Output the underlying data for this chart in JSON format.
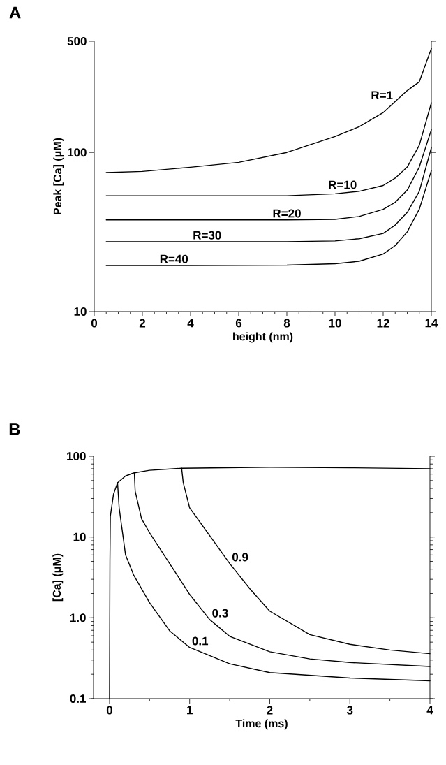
{
  "chart_data": [
    {
      "type": "line",
      "title": "A",
      "xlabel": "height (nm)",
      "ylabel": "Peak [Ca] (μM)",
      "log": "y",
      "marker": "none",
      "line_style": "solid",
      "xlim": [
        0,
        14
      ],
      "ylim": [
        10,
        500
      ],
      "xticks": [
        0,
        2,
        4,
        6,
        8,
        10,
        12,
        14
      ],
      "yticks": [
        10,
        100,
        500
      ],
      "series": [
        {
          "name": "R=1",
          "color": "#000000",
          "x": [
            0.5,
            2,
            4,
            6,
            8,
            10,
            11,
            12,
            12.5,
            13,
            13.5,
            14
          ],
          "values": [
            74.7,
            76,
            80.7,
            86.7,
            100,
            126,
            145,
            178,
            209,
            245,
            278,
            450
          ]
        },
        {
          "name": "R=10",
          "color": "#000000",
          "x": [
            0.5,
            4,
            8,
            10,
            11,
            12,
            12.5,
            13,
            13.5,
            14
          ],
          "values": [
            53.5,
            53.5,
            53.5,
            55,
            57,
            62,
            69,
            81,
            111,
            205
          ]
        },
        {
          "name": "R=20",
          "color": "#000000",
          "x": [
            0.5,
            4,
            8,
            10,
            11,
            12,
            12.5,
            13,
            13.5,
            14
          ],
          "values": [
            37.7,
            37.7,
            37.7,
            38,
            39.6,
            43.9,
            48.6,
            58,
            81,
            139
          ]
        },
        {
          "name": "R=30",
          "color": "#000000",
          "x": [
            0.5,
            4,
            8,
            10,
            11,
            12,
            12.5,
            13,
            13.5,
            14
          ],
          "values": [
            27.5,
            27.5,
            27.5,
            27.8,
            28.7,
            31,
            35,
            42,
            57,
            107
          ]
        },
        {
          "name": "R=40",
          "color": "#000000",
          "x": [
            0.5,
            4,
            8,
            10,
            11,
            12,
            12.5,
            13,
            13.5,
            14
          ],
          "values": [
            19.5,
            19.5,
            19.6,
            20,
            20.7,
            23,
            26,
            31.7,
            44,
            77
          ]
        }
      ]
    },
    {
      "type": "line",
      "title": "B",
      "xlabel": "Time (ms)",
      "ylabel": "[Ca] (μM)",
      "log": "y",
      "marker": "none",
      "line_style": "solid",
      "xlim": [
        -0.2,
        4
      ],
      "ylim": [
        0.1,
        100
      ],
      "xticks": [
        0,
        1,
        2,
        3,
        4
      ],
      "yticks": [
        0.1,
        {
          "value": 1,
          "label": "1.0"
        },
        10,
        100
      ],
      "series": [
        {
          "color": "#000000",
          "x": [
            0,
            0.005,
            0.01,
            0.05,
            0.1,
            0.2,
            0.3,
            0.5,
            0.9,
            2,
            3,
            4
          ],
          "values": [
            0.1,
            5,
            18,
            34,
            47,
            57,
            62,
            67,
            71,
            73,
            72,
            70
          ]
        },
        {
          "name": "0.1",
          "color": "#000000",
          "x": [
            0.1,
            0.12,
            0.2,
            0.3,
            0.5,
            0.75,
            1,
            1.5,
            2,
            3,
            4
          ],
          "values": [
            47,
            23,
            6,
            3.4,
            1.54,
            0.69,
            0.43,
            0.27,
            0.21,
            0.18,
            0.166
          ]
        },
        {
          "name": "0.3",
          "color": "#000000",
          "x": [
            0.31,
            0.32,
            0.4,
            0.5,
            0.75,
            1,
            1.25,
            1.5,
            2,
            2.5,
            3,
            4
          ],
          "values": [
            62,
            37,
            16.8,
            11.3,
            4.7,
            1.95,
            0.95,
            0.59,
            0.38,
            0.31,
            0.28,
            0.25
          ]
        },
        {
          "name": "0.9",
          "color": "#000000",
          "x": [
            0.9,
            0.92,
            1,
            1.25,
            1.5,
            1.75,
            2,
            2.5,
            3,
            3.5,
            4
          ],
          "values": [
            71,
            47,
            23,
            10.4,
            4.7,
            2.3,
            1.21,
            0.62,
            0.47,
            0.4,
            0.36
          ]
        }
      ]
    }
  ]
}
